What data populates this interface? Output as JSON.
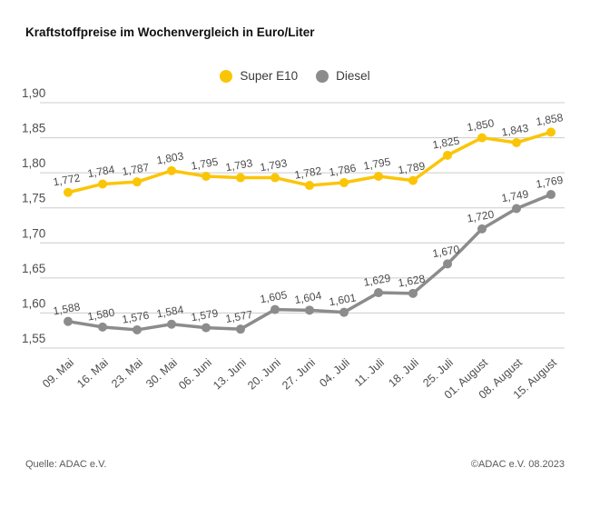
{
  "header": {
    "title": "Kraftstoffpreise im Wochenvergleich in Euro/Liter"
  },
  "chart_data": {
    "type": "line",
    "title": "Kraftstoffpreise im Wochenvergleich in Euro/Liter",
    "xlabel": "",
    "ylabel": "Euro/Liter",
    "categories": [
      "09. Mai",
      "16. Mai",
      "23. Mai",
      "30. Mai",
      "06. Juni",
      "13. Juni",
      "20. Juni",
      "27. Juni",
      "04. Juli",
      "11. Juli",
      "18. Juli",
      "25. Juli",
      "01. August",
      "08. August",
      "15. August"
    ],
    "series": [
      {
        "name": "Super E10",
        "color": "#FBC507",
        "values": [
          1.772,
          1.784,
          1.787,
          1.803,
          1.795,
          1.793,
          1.793,
          1.782,
          1.786,
          1.795,
          1.789,
          1.825,
          1.85,
          1.843,
          1.858
        ]
      },
      {
        "name": "Diesel",
        "color": "#8C8C8C",
        "values": [
          1.588,
          1.58,
          1.576,
          1.584,
          1.579,
          1.577,
          1.605,
          1.604,
          1.601,
          1.629,
          1.628,
          1.67,
          1.72,
          1.749,
          1.769
        ]
      }
    ],
    "ylim": [
      1.55,
      1.9
    ],
    "yticks": [
      1.55,
      1.6,
      1.65,
      1.7,
      1.75,
      1.8,
      1.85,
      1.9
    ],
    "ytick_labels": [
      "1,55",
      "1,60",
      "1,65",
      "1,70",
      "1,75",
      "1,80",
      "1,85",
      "1,90"
    ],
    "grid": true,
    "legend_position": "top-center",
    "value_labels": true,
    "decimal_separator": ","
  },
  "style": {
    "grid_color": "#CCCCCC",
    "axis_text_color": "#4D4D4D",
    "value_label_color": "#4D4D4D"
  },
  "footer": {
    "source": "Quelle: ADAC e.V.",
    "copyright": "©ADAC e.V. 08.2023"
  }
}
